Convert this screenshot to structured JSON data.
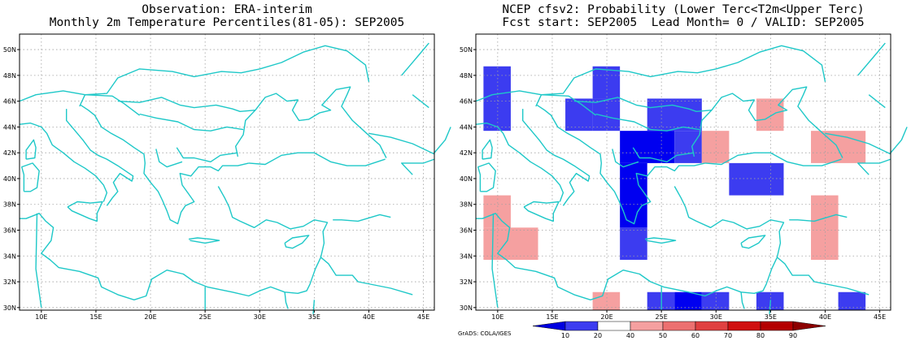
{
  "left_panel": {
    "title_line1": "Observation: ERA-interim",
    "title_line2": "Monthly 2m Temperature Percentiles(81-05): SEP2005"
  },
  "right_panel": {
    "title_line1": "NCEP cfsv2: Probability (Lower Terc<T2m<Upper Terc)",
    "title_line2": "Fcst start: SEP2005  Lead Month= 0 / VALID: SEP2005"
  },
  "map_extent": {
    "lon_min": 8,
    "lon_max": 46,
    "lat_min": 29.8,
    "lat_max": 51.2
  },
  "x_ticks": [
    {
      "lon": 10,
      "label": "10E"
    },
    {
      "lon": 15,
      "label": "15E"
    },
    {
      "lon": 20,
      "label": "20E"
    },
    {
      "lon": 25,
      "label": "25E"
    },
    {
      "lon": 30,
      "label": "30E"
    },
    {
      "lon": 35,
      "label": "35E"
    },
    {
      "lon": 40,
      "label": "40E"
    },
    {
      "lon": 45,
      "label": "45E"
    }
  ],
  "y_ticks": [
    {
      "lat": 30,
      "label": "30N"
    },
    {
      "lat": 32,
      "label": "32N"
    },
    {
      "lat": 34,
      "label": "34N"
    },
    {
      "lat": 36,
      "label": "36N"
    },
    {
      "lat": 38,
      "label": "38N"
    },
    {
      "lat": 40,
      "label": "40N"
    },
    {
      "lat": 42,
      "label": "42N"
    },
    {
      "lat": 44,
      "label": "44N"
    },
    {
      "lat": 46,
      "label": "46N"
    },
    {
      "lat": 48,
      "label": "48N"
    },
    {
      "lat": 50,
      "label": "50N"
    }
  ],
  "colors": {
    "coast": "#1ec8c8",
    "grid": "#a0a0a0",
    "mid_blue": "#3c3cf0",
    "dark_blue": "#0000f0",
    "light_red": "#f5a0a0"
  },
  "probability_cells": [
    {
      "lon": [
        8.7,
        11.2
      ],
      "lat": [
        43.7,
        48.7
      ],
      "cls": "mid_blue"
    },
    {
      "lon": [
        18.7,
        21.2
      ],
      "lat": [
        46.2,
        48.7
      ],
      "cls": "mid_blue"
    },
    {
      "lon": [
        16.2,
        18.7
      ],
      "lat": [
        43.7,
        46.2
      ],
      "cls": "mid_blue"
    },
    {
      "lon": [
        18.7,
        21.2
      ],
      "lat": [
        43.7,
        46.2
      ],
      "cls": "mid_blue"
    },
    {
      "lon": [
        23.7,
        28.7
      ],
      "lat": [
        43.7,
        46.2
      ],
      "cls": "mid_blue"
    },
    {
      "lon": [
        21.2,
        26.2
      ],
      "lat": [
        41.2,
        43.7
      ],
      "cls": "dark_blue"
    },
    {
      "lon": [
        26.2,
        28.7
      ],
      "lat": [
        41.2,
        43.7
      ],
      "cls": "mid_blue"
    },
    {
      "lon": [
        21.2,
        23.7
      ],
      "lat": [
        33.7,
        36.2
      ],
      "cls": "mid_blue"
    },
    {
      "lon": [
        21.2,
        23.7
      ],
      "lat": [
        36.2,
        41.2
      ],
      "cls": "dark_blue"
    },
    {
      "lon": [
        31.2,
        36.2
      ],
      "lat": [
        38.7,
        41.2
      ],
      "cls": "mid_blue"
    },
    {
      "lon": [
        28.7,
        31.2
      ],
      "lat": [
        41.2,
        43.7
      ],
      "cls": "light_red"
    },
    {
      "lon": [
        33.7,
        36.2
      ],
      "lat": [
        43.7,
        46.2
      ],
      "cls": "light_red"
    },
    {
      "lon": [
        38.7,
        43.7
      ],
      "lat": [
        41.2,
        43.7
      ],
      "cls": "light_red"
    },
    {
      "lon": [
        8.7,
        11.2
      ],
      "lat": [
        36.2,
        38.7
      ],
      "cls": "light_red"
    },
    {
      "lon": [
        8.7,
        13.7
      ],
      "lat": [
        33.7,
        36.2
      ],
      "cls": "light_red"
    },
    {
      "lon": [
        38.7,
        41.2
      ],
      "lat": [
        33.7,
        38.7
      ],
      "cls": "light_red"
    },
    {
      "lon": [
        18.7,
        21.2
      ],
      "lat": [
        29.8,
        31.2
      ],
      "cls": "light_red"
    },
    {
      "lon": [
        23.7,
        26.2
      ],
      "lat": [
        29.8,
        31.2
      ],
      "cls": "mid_blue"
    },
    {
      "lon": [
        26.2,
        28.7
      ],
      "lat": [
        29.8,
        31.2
      ],
      "cls": "dark_blue"
    },
    {
      "lon": [
        28.7,
        31.2
      ],
      "lat": [
        29.8,
        31.2
      ],
      "cls": "mid_blue"
    },
    {
      "lon": [
        33.7,
        36.2
      ],
      "lat": [
        29.8,
        31.2
      ],
      "cls": "mid_blue"
    },
    {
      "lon": [
        41.2,
        43.7
      ],
      "lat": [
        29.8,
        31.2
      ],
      "cls": "mid_blue"
    }
  ],
  "colorbar": {
    "colors": [
      "#0000e0",
      "#3c3cf0",
      "#ffffff",
      "#f5a0a0",
      "#ec7070",
      "#e04040",
      "#d01010",
      "#b40000",
      "#8c0000"
    ],
    "labels": [
      "10",
      "20",
      "40",
      "50",
      "60",
      "70",
      "80",
      "90"
    ]
  },
  "credit": "GrADS: COLA/IGES"
}
